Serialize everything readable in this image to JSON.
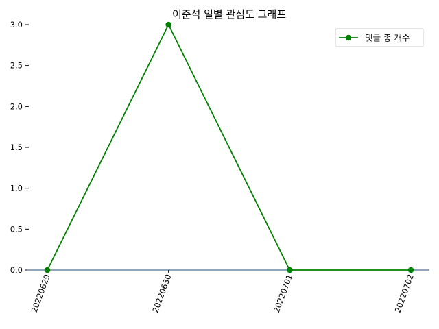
{
  "chart_data": {
    "type": "line",
    "title": "이준석 일별 관심도 그래프",
    "xlabel": "",
    "ylabel": "",
    "categories": [
      "20220629",
      "20220630",
      "20220701",
      "20220702"
    ],
    "series": [
      {
        "name": "댓글 총 개수",
        "values": [
          0,
          3,
          0,
          0
        ],
        "color": "#008000"
      }
    ],
    "ylim": [
      0,
      3.0
    ],
    "yticks": [
      "0.0",
      "0.5",
      "1.0",
      "1.5",
      "2.0",
      "2.5",
      "3.0"
    ],
    "grid": false,
    "legend": "top-right",
    "baseline_color": "#1f4e79"
  }
}
